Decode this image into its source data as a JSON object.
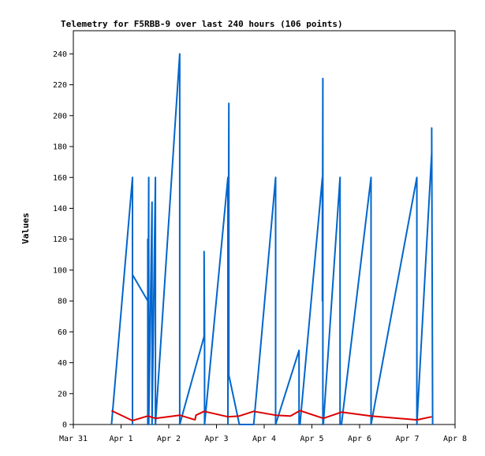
{
  "chart_data": {
    "type": "line",
    "title": "Telemetry for F5RBB-9 over last 240 hours (106 points)",
    "ylabel": "Values",
    "xlabel": "",
    "xlim": [
      0,
      8
    ],
    "ylim": [
      0,
      255
    ],
    "x_tick_labels": [
      "Mar 31",
      "Apr 1",
      "Apr 2",
      "Apr 3",
      "Apr 4",
      "Apr 5",
      "Apr 6",
      "Apr 7",
      "Apr 8"
    ],
    "y_ticks": [
      0,
      20,
      40,
      60,
      80,
      100,
      120,
      140,
      160,
      180,
      200,
      220,
      240
    ],
    "grid": false,
    "legend": "none",
    "series": [
      {
        "color": "#0066cc",
        "x": [
          0.8,
          1.24,
          1.24,
          1.24,
          1.56,
          1.56,
          1.56,
          1.58,
          1.58,
          1.65,
          1.65,
          1.72,
          1.72,
          2.23,
          2.23,
          2.74,
          2.74,
          2.75,
          2.75,
          3.24,
          3.24,
          3.26,
          3.26,
          3.48,
          3.48,
          3.78,
          3.78,
          4.24,
          4.24,
          4.73,
          4.73,
          4.75,
          4.75,
          5.22,
          5.22,
          5.23,
          5.23,
          5.24,
          5.24,
          5.59,
          5.59,
          5.62,
          5.62,
          6.24,
          6.24,
          7.2,
          7.2,
          7.51,
          7.51,
          7.53,
          7.53
        ],
        "y": [
          0,
          160,
          0,
          97,
          80,
          120,
          0,
          160,
          0,
          144,
          0,
          160,
          0,
          240,
          0,
          57,
          112,
          57,
          0,
          160,
          0,
          208,
          32,
          0,
          0,
          0,
          0,
          160,
          0,
          48,
          0,
          0,
          0,
          160,
          80,
          224,
          0,
          0,
          0,
          160,
          0,
          0,
          0,
          160,
          0,
          160,
          0,
          176,
          192,
          0,
          0
        ]
      },
      {
        "color": "#dd0000",
        "x": [
          0.8,
          1.24,
          1.56,
          1.72,
          2.23,
          2.55,
          2.57,
          2.74,
          3.24,
          3.48,
          3.78,
          4.24,
          4.55,
          4.75,
          5.24,
          5.62,
          6.24,
          7.2,
          7.51
        ],
        "y": [
          9,
          2.5,
          5.5,
          4,
          6,
          3,
          6,
          8.5,
          5,
          5.5,
          8.5,
          6,
          5.5,
          9,
          4,
          8,
          5.5,
          3,
          5
        ]
      }
    ]
  }
}
